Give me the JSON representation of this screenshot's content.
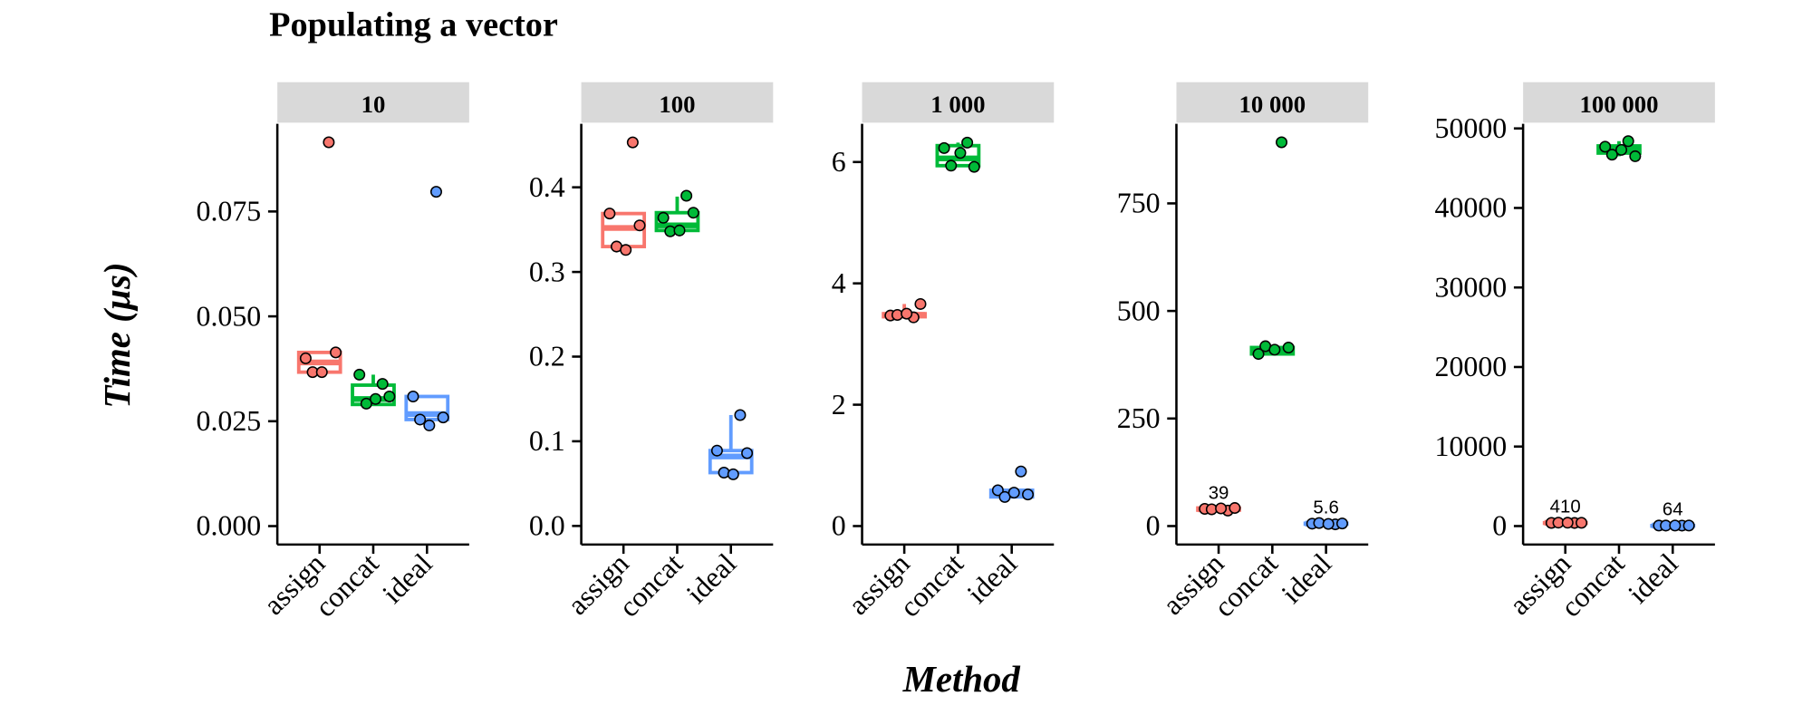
{
  "title": "Populating a vector",
  "ylabel": "Time (µs)",
  "xlabel": "Method",
  "chart_data": [
    {
      "type": "box",
      "facet": "10",
      "ylim": [
        -0.0044,
        0.0959
      ],
      "yticks": [
        {
          "value": 0,
          "label": "0.000"
        },
        {
          "value": 0.025,
          "label": "0.025"
        },
        {
          "value": 0.05,
          "label": "0.050"
        },
        {
          "value": 0.075,
          "label": "0.075"
        }
      ],
      "categories": [
        "assign",
        "concat",
        "ideal"
      ],
      "boxes": [
        {
          "color": "#f8766d",
          "q1": 0.0367,
          "median": 0.039,
          "q3": 0.0414,
          "whisker_low": 0.0367,
          "whisker_high": 0.0414,
          "points": [
            0.0915,
            0.04,
            0.0414,
            0.0367,
            0.0367
          ]
        },
        {
          "color": "#00ba38",
          "q1": 0.029,
          "median": 0.0303,
          "q3": 0.0336,
          "whisker_low": 0.029,
          "whisker_high": 0.0361,
          "points": [
            0.0339,
            0.0361,
            0.0309,
            0.0292,
            0.0303
          ]
        },
        {
          "color": "#619cff",
          "q1": 0.0254,
          "median": 0.0267,
          "q3": 0.0309,
          "whisker_low": 0.024,
          "whisker_high": 0.0309,
          "points": [
            0.0797,
            0.0309,
            0.0259,
            0.0254,
            0.024
          ]
        }
      ]
    },
    {
      "type": "box",
      "facet": "100",
      "ylim": [
        -0.022,
        0.475
      ],
      "yticks": [
        {
          "value": 0,
          "label": "0.0"
        },
        0.1,
        0.2,
        0.3,
        0.4
      ],
      "categories": [
        "assign",
        "concat",
        "ideal"
      ],
      "boxes": [
        {
          "color": "#f8766d",
          "q1": 0.33,
          "median": 0.352,
          "q3": 0.369,
          "whisker_low": 0.326,
          "whisker_high": 0.369,
          "points": [
            0.453,
            0.369,
            0.355,
            0.33,
            0.326
          ]
        },
        {
          "color": "#00ba38",
          "q1": 0.349,
          "median": 0.355,
          "q3": 0.37,
          "whisker_low": 0.348,
          "whisker_high": 0.389,
          "points": [
            0.39,
            0.364,
            0.37,
            0.348,
            0.349
          ]
        },
        {
          "color": "#619cff",
          "q1": 0.063,
          "median": 0.082,
          "q3": 0.089,
          "whisker_low": 0.061,
          "whisker_high": 0.131,
          "points": [
            0.131,
            0.089,
            0.086,
            0.063,
            0.061
          ]
        }
      ]
    },
    {
      "type": "box",
      "facet": "1 000",
      "ylim": [
        -0.305,
        6.63
      ],
      "yticks": [
        0,
        2,
        4,
        6
      ],
      "categories": [
        "assign",
        "concat",
        "ideal"
      ],
      "boxes": [
        {
          "color": "#f8766d",
          "q1": 3.45,
          "median": 3.48,
          "q3": 3.5,
          "whisker_low": 3.44,
          "whisker_high": 3.66,
          "points": [
            3.44,
            3.47,
            3.66,
            3.48,
            3.5
          ]
        },
        {
          "color": "#00ba38",
          "q1": 5.94,
          "median": 6.06,
          "q3": 6.27,
          "whisker_low": 5.92,
          "whisker_high": 6.32,
          "points": [
            6.32,
            6.23,
            5.92,
            5.94,
            6.15
          ]
        },
        {
          "color": "#619cff",
          "q1": 0.48,
          "median": 0.55,
          "q3": 0.59,
          "whisker_low": 0.48,
          "whisker_high": 0.59,
          "points": [
            0.9,
            0.59,
            0.52,
            0.48,
            0.55
          ]
        }
      ]
    },
    {
      "type": "box",
      "facet": "10 000",
      "ylim": [
        -43,
        935
      ],
      "yticks": [
        0,
        250,
        500,
        750
      ],
      "categories": [
        "assign",
        "concat",
        "ideal"
      ],
      "boxes": [
        {
          "color": "#f8766d",
          "q1": 37,
          "median": 39,
          "q3": 42,
          "whisker_low": 36,
          "whisker_high": 42,
          "points": [
            36,
            40,
            42,
            39,
            41
          ],
          "label_median": true
        },
        {
          "color": "#00ba38",
          "q1": 400,
          "median": 410,
          "q3": 415,
          "whisker_low": 400,
          "whisker_high": 418,
          "points": [
            892,
            400,
            415,
            418,
            410
          ]
        },
        {
          "color": "#619cff",
          "q1": 4.5,
          "median": 5.6,
          "q3": 6.5,
          "whisker_low": 4,
          "whisker_high": 7,
          "points": [
            4,
            5.6,
            6,
            7,
            5
          ],
          "label_median": true
        }
      ]
    },
    {
      "type": "box",
      "facet": "100 000",
      "ylim": [
        -2326,
        50581
      ],
      "yticks": [
        0,
        10000,
        20000,
        30000,
        40000,
        50000
      ],
      "categories": [
        "assign",
        "concat",
        "ideal"
      ],
      "boxes": [
        {
          "color": "#f8766d",
          "q1": 400,
          "median": 410,
          "q3": 420,
          "whisker_low": 390,
          "whisker_high": 430,
          "points": [
            390,
            400,
            410,
            430,
            420
          ],
          "label_median": true
        },
        {
          "color": "#00ba38",
          "q1": 46900,
          "median": 47300,
          "q3": 47800,
          "whisker_low": 46500,
          "whisker_high": 48400,
          "points": [
            48400,
            47700,
            46500,
            46700,
            47300
          ]
        },
        {
          "color": "#619cff",
          "q1": 62,
          "median": 64,
          "q3": 66,
          "whisker_low": 60,
          "whisker_high": 70,
          "points": [
            60,
            64,
            66,
            62,
            70
          ],
          "label_median": true
        }
      ]
    }
  ]
}
